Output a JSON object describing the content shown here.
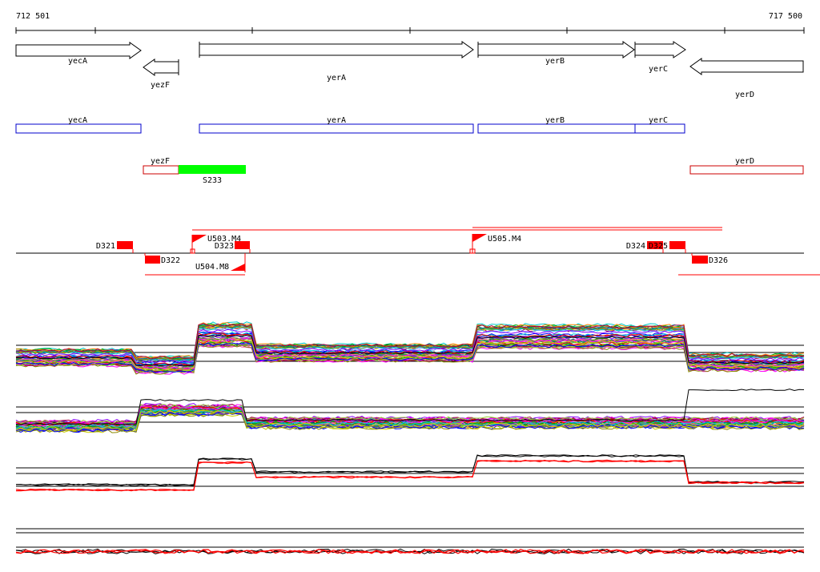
{
  "coordinates": {
    "start": "712 501",
    "end": "717 500"
  },
  "colors": {
    "axis": "#000000",
    "gene_outline": "#000000",
    "blue_box": "#0000cc",
    "red_box": "#cc0000",
    "green_feature": "#00ff00",
    "red_feature": "#ff0000"
  },
  "genes": [
    {
      "name": "yecA",
      "strand": "+"
    },
    {
      "name": "yezF",
      "strand": "-"
    },
    {
      "name": "yerA",
      "strand": "+"
    },
    {
      "name": "yerB",
      "strand": "+"
    },
    {
      "name": "yerC",
      "strand": "+"
    },
    {
      "name": "yerD",
      "strand": "-"
    }
  ],
  "gene_boxes": [
    {
      "name": "yecA",
      "color": "blue"
    },
    {
      "name": "yerA",
      "color": "blue"
    },
    {
      "name": "yerB",
      "color": "blue"
    },
    {
      "name": "yerC",
      "color": "blue"
    },
    {
      "name": "yezF",
      "color": "red"
    },
    {
      "name": "yerD",
      "color": "red"
    }
  ],
  "feature_green": {
    "label": "S233"
  },
  "down_features": [
    "D321",
    "D322",
    "D323",
    "D324",
    "D325",
    "D326"
  ],
  "up_features": [
    "U503.M4",
    "U504.M8",
    "U505.M4"
  ],
  "expression_panels": [
    "panel-1",
    "panel-2",
    "panel-3",
    "panel-4"
  ]
}
